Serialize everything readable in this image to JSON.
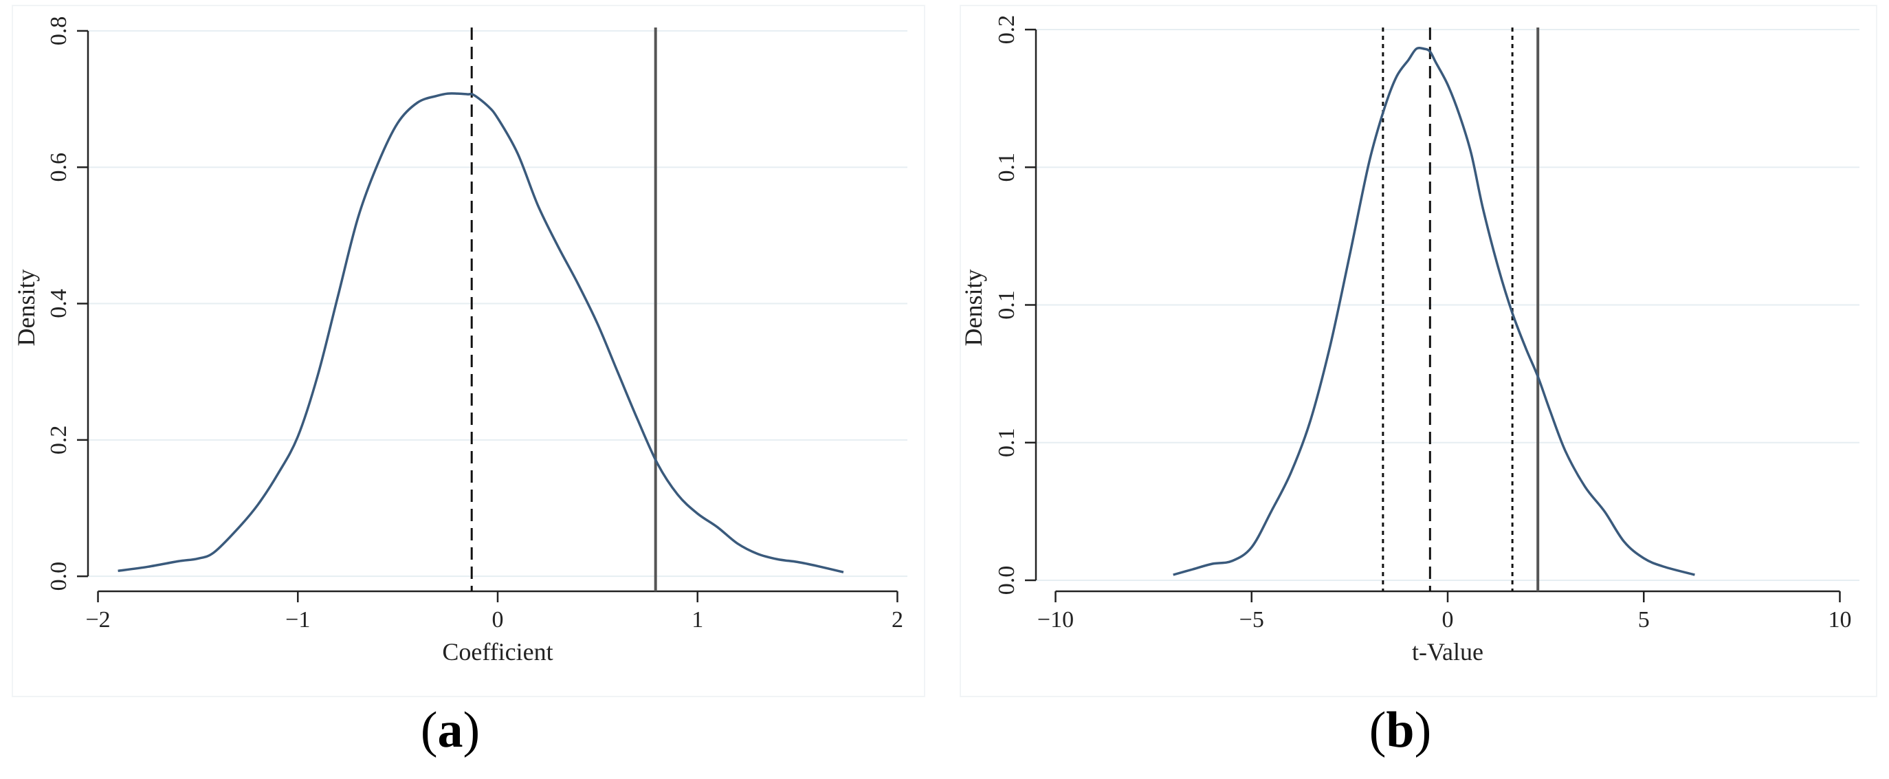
{
  "colors": {
    "density_curve": "#3a5a7c",
    "reference_line": "#555555",
    "mean_line": "#111111",
    "grid": "#e6eef2",
    "axis": "#222222",
    "panel_background": "#ffffff"
  },
  "chart_data": [
    {
      "type": "line",
      "panel_label": "a",
      "xlabel": "Coefficient",
      "ylabel": "Density",
      "xlim": [
        -2.05,
        2.05
      ],
      "ylim": [
        -0.022,
        0.81
      ],
      "xticks": [
        -2,
        -1,
        0,
        1,
        2
      ],
      "xtick_labels": [
        "−2",
        "−1",
        "0",
        "1",
        "2"
      ],
      "yticks": [
        0.0,
        0.2,
        0.4,
        0.6,
        0.8
      ],
      "ytick_labels": [
        "0.0",
        "0.2",
        "0.4",
        "0.6",
        "0.8"
      ],
      "grid": true,
      "series": [
        {
          "x": [
            -1.9,
            -1.75,
            -1.6,
            -1.5,
            -1.42,
            -1.3,
            -1.2,
            -1.1,
            -1.0,
            -0.9,
            -0.8,
            -0.7,
            -0.6,
            -0.5,
            -0.4,
            -0.3,
            -0.25,
            -0.2,
            -0.15,
            -0.12,
            -0.05,
            0.0,
            0.1,
            0.2,
            0.3,
            0.4,
            0.5,
            0.6,
            0.7,
            0.8,
            0.9,
            1.0,
            1.1,
            1.2,
            1.3,
            1.4,
            1.5,
            1.6,
            1.73
          ],
          "y": [
            0.008,
            0.014,
            0.022,
            0.026,
            0.035,
            0.07,
            0.105,
            0.15,
            0.205,
            0.295,
            0.41,
            0.525,
            0.605,
            0.665,
            0.695,
            0.705,
            0.708,
            0.708,
            0.707,
            0.706,
            0.69,
            0.672,
            0.62,
            0.545,
            0.485,
            0.43,
            0.37,
            0.3,
            0.23,
            0.165,
            0.12,
            0.092,
            0.072,
            0.048,
            0.033,
            0.025,
            0.021,
            0.015,
            0.006
          ]
        }
      ],
      "vlines": [
        {
          "x": -0.13,
          "style": "dashed"
        },
        {
          "x": 0.79,
          "style": "solid"
        }
      ]
    },
    {
      "type": "line",
      "panel_label": "b",
      "xlabel": "t-Value",
      "ylabel": "Density",
      "xlim": [
        -10.5,
        10.5
      ],
      "ylim": [
        -0.004,
        0.202
      ],
      "xticks": [
        -10,
        -5,
        0,
        5,
        10
      ],
      "xtick_labels": [
        "−10",
        "−5",
        "0",
        "5",
        "10"
      ],
      "yticks": [
        0.0,
        0.05,
        0.1,
        0.15,
        0.2
      ],
      "ytick_labels": [
        "0.0",
        "0.1",
        "0.1",
        "0.1",
        "0.2"
      ],
      "grid": true,
      "series": [
        {
          "x": [
            -7.0,
            -6.5,
            -6.0,
            -5.5,
            -5.0,
            -4.5,
            -4.0,
            -3.5,
            -3.0,
            -2.5,
            -2.0,
            -1.6,
            -1.3,
            -1.0,
            -0.8,
            -0.6,
            -0.45,
            -0.3,
            0.0,
            0.3,
            0.6,
            0.9,
            1.3,
            1.65,
            2.0,
            2.3,
            2.6,
            3.0,
            3.5,
            4.0,
            4.5,
            5.0,
            5.5,
            6.3
          ],
          "y": [
            0.002,
            0.004,
            0.006,
            0.007,
            0.012,
            0.025,
            0.039,
            0.058,
            0.085,
            0.118,
            0.152,
            0.172,
            0.183,
            0.189,
            0.193,
            0.193,
            0.192,
            0.188,
            0.18,
            0.169,
            0.155,
            0.135,
            0.113,
            0.097,
            0.084,
            0.074,
            0.062,
            0.047,
            0.034,
            0.025,
            0.014,
            0.008,
            0.005,
            0.002
          ]
        }
      ],
      "vlines": [
        {
          "x": -1.65,
          "style": "dotted"
        },
        {
          "x": -0.45,
          "style": "dashed"
        },
        {
          "x": 1.65,
          "style": "dotted"
        },
        {
          "x": 2.3,
          "style": "solid"
        }
      ]
    }
  ]
}
